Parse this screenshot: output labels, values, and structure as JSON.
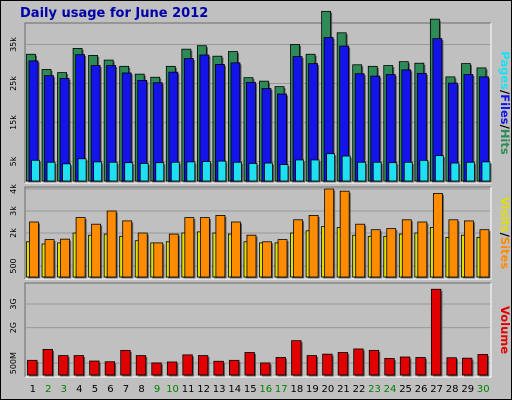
{
  "title": "Daily usage for June 2012",
  "colors": {
    "frame_bg": "#c0c0c0",
    "plot_bg": "#c0c0c0",
    "title": "#0000a8",
    "hits": "#2e8b57",
    "files": "#1414e8",
    "pages": "#1ee0f0",
    "visits": "#e0e000",
    "sites": "#ff8c00",
    "volume": "#e00000",
    "weekday_label": "#000000",
    "weekend_label": "#008000",
    "gridline": "#999999"
  },
  "chart_data": [
    {
      "type": "bar",
      "name": "hits-files-pages",
      "categories": [
        "1",
        "2",
        "3",
        "4",
        "5",
        "6",
        "7",
        "8",
        "9",
        "10",
        "11",
        "12",
        "13",
        "14",
        "15",
        "16",
        "17",
        "18",
        "19",
        "20",
        "21",
        "22",
        "23",
        "24",
        "25",
        "26",
        "27",
        "28",
        "29",
        "30"
      ],
      "weekend_days": [
        "2",
        "3",
        "9",
        "10",
        "16",
        "17",
        "23",
        "24",
        "30"
      ],
      "ylim": [
        0,
        40000
      ],
      "yticks": [
        5000,
        15000,
        25000,
        35000
      ],
      "ytick_labels": [
        "5k",
        "15k",
        "25k",
        "35k"
      ],
      "legend": [
        {
          "label": "Pages",
          "color": "#1ee0f0"
        },
        {
          "label": "Files",
          "color": "#1414e8"
        },
        {
          "label": "Hits",
          "color": "#2e8b57"
        }
      ],
      "series": [
        {
          "name": "Hits",
          "values": [
            32500,
            28600,
            27800,
            34000,
            32200,
            31000,
            29400,
            27400,
            26600,
            29400,
            33800,
            34700,
            32000,
            33200,
            26500,
            25600,
            24200,
            35000,
            32500,
            43500,
            38000,
            29800,
            29400,
            29600,
            30600,
            30200,
            41500,
            26700,
            30100,
            29000
          ]
        },
        {
          "name": "Files",
          "values": [
            30800,
            27000,
            26300,
            32400,
            29600,
            29600,
            27700,
            25800,
            25200,
            27900,
            31400,
            32300,
            29900,
            30300,
            25300,
            23700,
            22300,
            31900,
            30100,
            36800,
            34600,
            27500,
            26900,
            27300,
            28500,
            27600,
            36500,
            25100,
            27300,
            26700
          ]
        },
        {
          "name": "Pages",
          "values": [
            5300,
            4800,
            4400,
            5700,
            4900,
            4800,
            4700,
            4500,
            4700,
            4800,
            4900,
            5000,
            5100,
            4800,
            4500,
            4600,
            4200,
            5400,
            5400,
            7000,
            6400,
            4800,
            4800,
            4700,
            4800,
            5300,
            6500,
            4600,
            4800,
            4900
          ]
        }
      ]
    },
    {
      "type": "bar",
      "name": "visits-sites",
      "categories": [
        "1",
        "2",
        "3",
        "4",
        "5",
        "6",
        "7",
        "8",
        "9",
        "10",
        "11",
        "12",
        "13",
        "14",
        "15",
        "16",
        "17",
        "18",
        "19",
        "20",
        "21",
        "22",
        "23",
        "24",
        "25",
        "26",
        "27",
        "28",
        "29",
        "30"
      ],
      "ylim": [
        0,
        4000
      ],
      "yticks": [
        500,
        2000,
        3000,
        4000
      ],
      "ytick_labels": [
        "500",
        "2k",
        "3k",
        "4k"
      ],
      "legend": [
        {
          "label": "Visits",
          "color": "#e0e000"
        },
        {
          "label": "Sites",
          "color": "#ff8c00"
        }
      ],
      "series": [
        {
          "name": "Visits",
          "values": [
            1600,
            1500,
            1550,
            2000,
            1900,
            1950,
            1850,
            1650,
            1550,
            1600,
            2000,
            2050,
            2000,
            1950,
            1600,
            1550,
            1550,
            2000,
            2100,
            2300,
            2250,
            1900,
            1850,
            1850,
            1950,
            2000,
            2250,
            1800,
            1900,
            1800
          ]
        },
        {
          "name": "Sites",
          "values": [
            2500,
            1700,
            1720,
            2700,
            2400,
            3000,
            2550,
            2000,
            1550,
            1950,
            2700,
            2700,
            2800,
            2500,
            1900,
            1600,
            1700,
            2600,
            2800,
            4000,
            3900,
            2400,
            2150,
            2200,
            2600,
            2500,
            3800,
            2600,
            2550,
            2150
          ]
        }
      ]
    },
    {
      "type": "bar",
      "name": "volume",
      "categories": [
        "1",
        "2",
        "3",
        "4",
        "5",
        "6",
        "7",
        "8",
        "9",
        "10",
        "11",
        "12",
        "13",
        "14",
        "15",
        "16",
        "17",
        "18",
        "19",
        "20",
        "21",
        "22",
        "23",
        "24",
        "25",
        "26",
        "27",
        "28",
        "29",
        "30"
      ],
      "ylim": [
        0,
        3800
      ],
      "yticks": [
        500,
        2000,
        3000
      ],
      "ytick_labels": [
        "500M",
        "2G",
        "3G"
      ],
      "legend": [
        {
          "label": "Volume",
          "color": "#e00000"
        }
      ],
      "series": [
        {
          "name": "Volume",
          "values": [
            620,
            1080,
            820,
            820,
            590,
            560,
            1040,
            820,
            510,
            550,
            850,
            820,
            580,
            620,
            950,
            510,
            740,
            1450,
            820,
            880,
            950,
            1100,
            1040,
            700,
            760,
            740,
            3620,
            730,
            710,
            870
          ]
        }
      ]
    }
  ]
}
